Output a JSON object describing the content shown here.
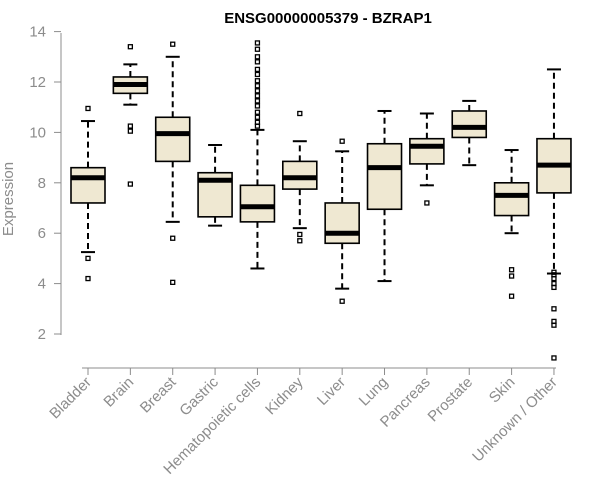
{
  "chart_data": {
    "type": "boxplot",
    "title": "ENSG00000005379 - BZRAP1",
    "xlabel": "",
    "ylabel": "Expression",
    "ylim": [
      0.8,
      14.2
    ],
    "yticks": [
      2,
      4,
      6,
      8,
      10,
      12,
      14
    ],
    "box_color": "#efe8d2",
    "categories": [
      "Bladder",
      "Brain",
      "Breast",
      "Gastric",
      "Hematopoietic cells",
      "Kidney",
      "Liver",
      "Lung",
      "Pancreas",
      "Prostate",
      "Skin",
      "Unknown / Other"
    ],
    "series": [
      {
        "name": "Bladder",
        "whisker_low": 5.25,
        "q1": 7.2,
        "median": 8.2,
        "q3": 8.6,
        "whisker_high": 10.45,
        "outliers": [
          10.95,
          5.0,
          4.2
        ]
      },
      {
        "name": "Brain",
        "whisker_low": 11.1,
        "q1": 11.55,
        "median": 11.9,
        "q3": 12.2,
        "whisker_high": 12.7,
        "outliers": [
          13.4,
          10.25,
          10.05,
          7.95
        ]
      },
      {
        "name": "Breast",
        "whisker_low": 6.45,
        "q1": 8.85,
        "median": 9.95,
        "q3": 10.6,
        "whisker_high": 13.0,
        "outliers": [
          13.5,
          5.8,
          4.05
        ]
      },
      {
        "name": "Gastric",
        "whisker_low": 6.3,
        "q1": 6.65,
        "median": 8.1,
        "q3": 8.4,
        "whisker_high": 9.5,
        "outliers": []
      },
      {
        "name": "Hematopoietic cells",
        "whisker_low": 4.6,
        "q1": 6.45,
        "median": 7.05,
        "q3": 7.9,
        "whisker_high": 10.1,
        "outliers": [
          13.55,
          13.3,
          13.0,
          12.8,
          12.5,
          12.3,
          12.05,
          11.85,
          11.65,
          11.45,
          11.25,
          11.05,
          10.8,
          10.6,
          10.4,
          10.25
        ]
      },
      {
        "name": "Kidney",
        "whisker_low": 6.2,
        "q1": 7.75,
        "median": 8.2,
        "q3": 8.85,
        "whisker_high": 9.65,
        "outliers": [
          10.75,
          5.95,
          5.7
        ]
      },
      {
        "name": "Liver",
        "whisker_low": 3.8,
        "q1": 5.6,
        "median": 6.0,
        "q3": 7.2,
        "whisker_high": 9.25,
        "outliers": [
          9.65,
          3.3
        ]
      },
      {
        "name": "Lung",
        "whisker_low": 4.1,
        "q1": 6.95,
        "median": 8.6,
        "q3": 9.55,
        "whisker_high": 10.85,
        "outliers": []
      },
      {
        "name": "Pancreas",
        "whisker_low": 7.9,
        "q1": 8.75,
        "median": 9.45,
        "q3": 9.75,
        "whisker_high": 10.75,
        "outliers": [
          7.2
        ]
      },
      {
        "name": "Prostate",
        "whisker_low": 8.7,
        "q1": 9.8,
        "median": 10.2,
        "q3": 10.85,
        "whisker_high": 11.25,
        "outliers": []
      },
      {
        "name": "Skin",
        "whisker_low": 6.0,
        "q1": 6.7,
        "median": 7.5,
        "q3": 8.0,
        "whisker_high": 9.3,
        "outliers": [
          4.55,
          4.3,
          3.5
        ]
      },
      {
        "name": "Unknown / Other",
        "whisker_low": 4.4,
        "q1": 7.6,
        "median": 8.7,
        "q3": 9.75,
        "whisker_high": 12.5,
        "outliers": [
          4.45,
          4.35,
          4.2,
          4.0,
          3.85,
          3.0,
          2.5,
          2.35,
          1.05
        ]
      }
    ]
  }
}
